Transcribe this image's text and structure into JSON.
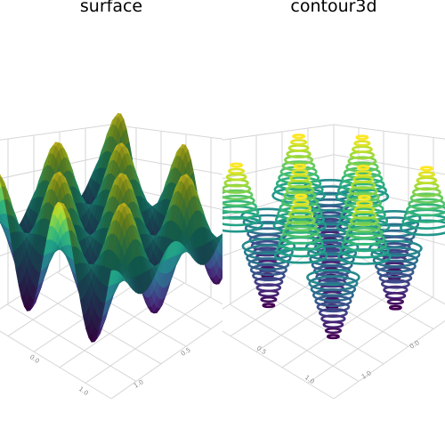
{
  "chart_data": [
    {
      "type": "surface",
      "title": "surface",
      "description_function": "z = sin(x) * cos(y) egg-crate grid of peaks",
      "colormap": "viridis",
      "peaks_per_axis": 4,
      "tick_labels_x": [
        "0.5",
        "1.0"
      ],
      "tick_labels_y": [
        "0.0",
        "1.0"
      ],
      "grid": true
    },
    {
      "type": "contour3d",
      "title": "contour3d",
      "colormap": "viridis",
      "peaks_per_axis": 4,
      "tick_labels_x": [
        "0.0",
        "1.0"
      ],
      "tick_labels_y": [
        "0.5",
        "1.0"
      ],
      "grid": true
    }
  ],
  "colors": {
    "viridis_low": "#440154",
    "viridis_mid": "#21918c",
    "viridis_high": "#fde725",
    "grid": "#d6d6d6",
    "tick_text": "#888888"
  }
}
